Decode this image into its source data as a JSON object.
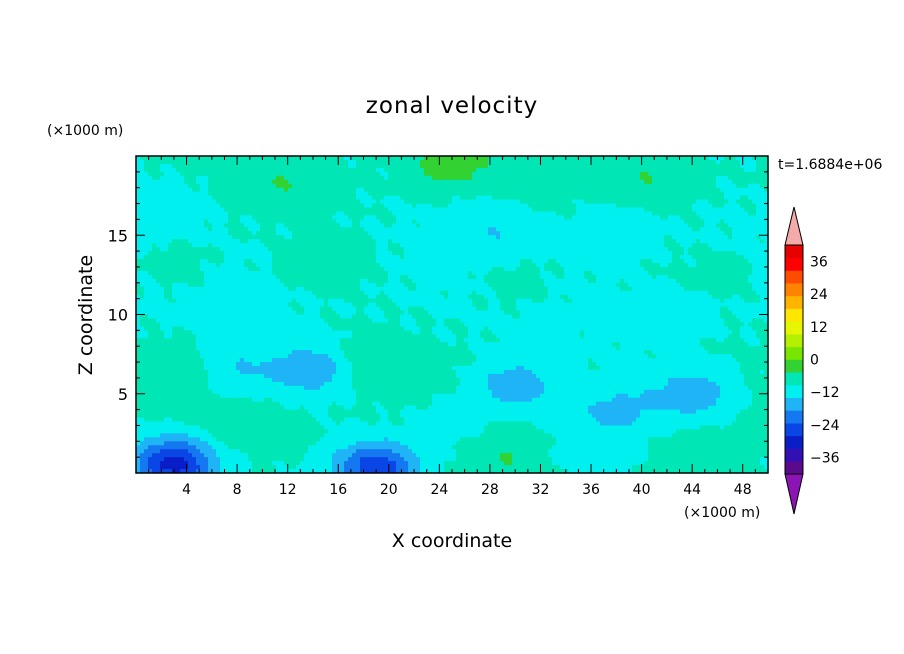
{
  "chart_data": {
    "type": "heatmap",
    "title": "zonal velocity",
    "xlabel": "X coordinate",
    "ylabel": "Z coordinate",
    "x_units": "(×1000 m)",
    "y_units": "(×1000 m)",
    "time_label": "t=1.6884e+06",
    "xlim": [
      0,
      50
    ],
    "ylim": [
      0,
      20
    ],
    "x_ticks": [
      "4",
      "8",
      "12",
      "16",
      "20",
      "24",
      "28",
      "32",
      "36",
      "40",
      "44",
      "48"
    ],
    "y_ticks": [
      "5",
      "10",
      "15"
    ],
    "colorbar": {
      "range": [
        -42,
        42
      ],
      "step": 6,
      "tick_labels": [
        "36",
        "24",
        "12",
        "0",
        "−12",
        "−24",
        "−36"
      ],
      "colors_bottom_to_top": [
        "#5a0a8c",
        "#3210b4",
        "#0a1ec8",
        "#0a46e6",
        "#1478f0",
        "#1eb4f5",
        "#00f0f0",
        "#00e6b4",
        "#32d232",
        "#78e600",
        "#b4f000",
        "#e6f500",
        "#ffe600",
        "#ffb400",
        "#ff8200",
        "#ff4b00",
        "#ff0000",
        "#e60000"
      ],
      "under_color": "#8c14b4",
      "over_color": "#f5aaaa"
    },
    "field_features": [
      {
        "x": 25,
        "z": 19.6,
        "u": 10
      },
      {
        "x": 12,
        "z": 18.5,
        "u": 5
      },
      {
        "x": 40,
        "z": 18.5,
        "u": 5
      },
      {
        "x": 2,
        "z": 17,
        "u": -4
      },
      {
        "x": 28,
        "z": 15.3,
        "u": -5
      },
      {
        "x": 38,
        "z": 15.5,
        "u": -4
      },
      {
        "x": 3,
        "z": 13,
        "u": 3
      },
      {
        "x": 15,
        "z": 13,
        "u": 3
      },
      {
        "x": 30,
        "z": 12,
        "u": 3
      },
      {
        "x": 46,
        "z": 12.5,
        "u": 2
      },
      {
        "x": 42,
        "z": 9.5,
        "u": -4
      },
      {
        "x": 14,
        "z": 6.5,
        "u": -11
      },
      {
        "x": 30,
        "z": 5.5,
        "u": -11
      },
      {
        "x": 44,
        "z": 5,
        "u": -11
      },
      {
        "x": 8,
        "z": 6.5,
        "u": -6
      },
      {
        "x": 25,
        "z": 3.5,
        "u": -4
      },
      {
        "x": 38,
        "z": 4,
        "u": -8
      },
      {
        "x": 3,
        "z": 6.5,
        "u": 5
      },
      {
        "x": 18.5,
        "z": 7,
        "u": 5
      },
      {
        "x": 8.5,
        "z": 3,
        "u": 5
      },
      {
        "x": 24,
        "z": 5.5,
        "u": 1
      },
      {
        "x": 3,
        "z": 1.2,
        "u": -12
      },
      {
        "x": 19,
        "z": 0.4,
        "u": -22
      },
      {
        "x": 3,
        "z": 0.2,
        "u": -18
      },
      {
        "x": 29.5,
        "z": 0.8,
        "u": 5
      },
      {
        "x": 44,
        "z": 0.8,
        "u": 5
      },
      {
        "x": 36,
        "z": 1.5,
        "u": -5
      },
      {
        "x": 13,
        "z": 2,
        "u": 1
      }
    ]
  }
}
